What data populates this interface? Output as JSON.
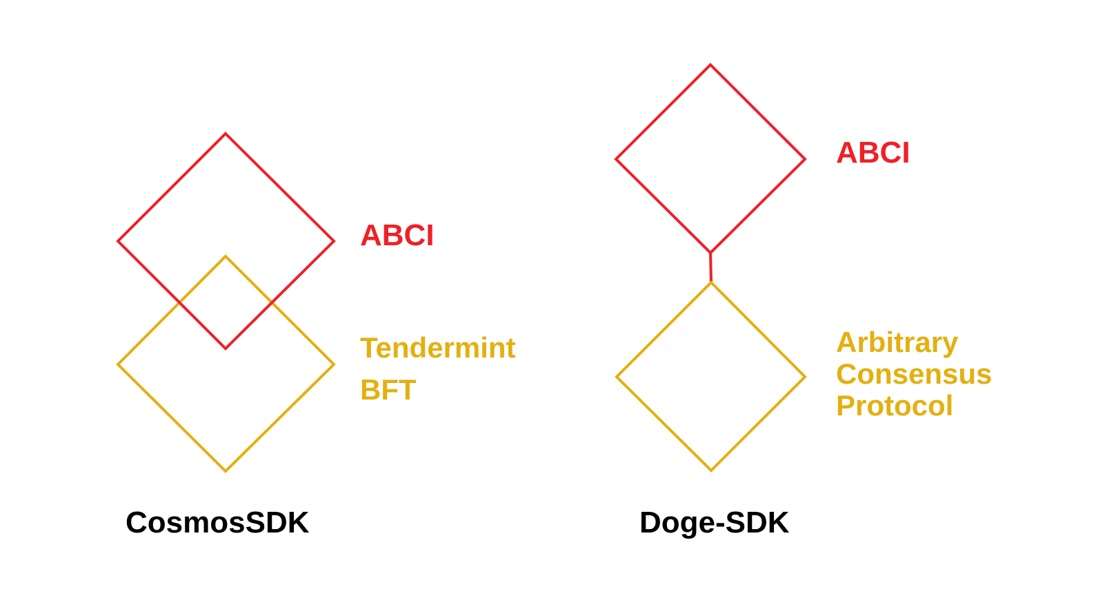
{
  "colors": {
    "abci": "#ee2127",
    "consensus": "#e3b010",
    "sdk_title": "#000000",
    "background": "#ffffff"
  },
  "cosmos": {
    "abci_label": "ABCI",
    "consensus_line1": "Tendermint",
    "consensus_line2": "BFT",
    "title": "CosmosSDK"
  },
  "doge": {
    "abci_label": "ABCI",
    "consensus_line1": "Arbitrary",
    "consensus_line2": "Consensus",
    "consensus_line3": "Protocol",
    "title": "Doge-SDK"
  }
}
